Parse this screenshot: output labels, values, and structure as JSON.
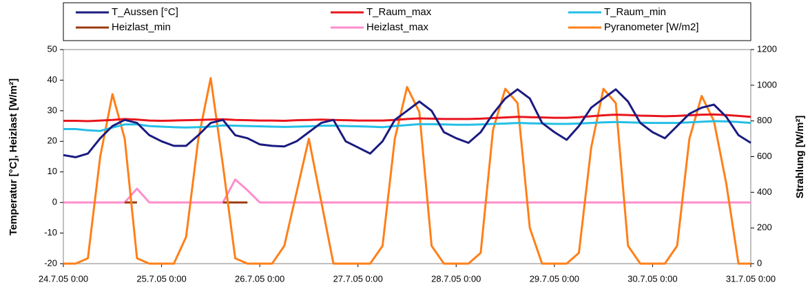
{
  "chart_data": {
    "type": "line",
    "y_label": "Temperatur [°C], Heizlast [W/m²]",
    "y2_label": "Strahlung [W/m²]",
    "xlim": [
      0,
      7
    ],
    "xticks": [
      {
        "value": 0,
        "label": "24.7.05  0:00"
      },
      {
        "value": 1,
        "label": "25.7.05  0:00"
      },
      {
        "value": 2,
        "label": "26.7.05  0:00"
      },
      {
        "value": 3,
        "label": "27.7.05  0:00"
      },
      {
        "value": 4,
        "label": "28.7.05  0:00"
      },
      {
        "value": 5,
        "label": "29.7.05  0:00"
      },
      {
        "value": 6,
        "label": "30.7.05  0:00"
      },
      {
        "value": 7,
        "label": "31.7.05  0:00"
      }
    ],
    "ylim": [
      -20,
      50
    ],
    "yticks": [
      -20,
      -10,
      0,
      10,
      20,
      30,
      40,
      50
    ],
    "y2lim": [
      0,
      1200
    ],
    "y2ticks": [
      0,
      200,
      400,
      600,
      800,
      1000,
      1200
    ],
    "x": [
      0,
      0.125,
      0.25,
      0.375,
      0.5,
      0.625,
      0.75,
      0.875,
      1,
      1.125,
      1.25,
      1.375,
      1.5,
      1.625,
      1.75,
      1.875,
      2,
      2.125,
      2.25,
      2.375,
      2.5,
      2.625,
      2.75,
      2.875,
      3,
      3.125,
      3.25,
      3.375,
      3.5,
      3.625,
      3.75,
      3.875,
      4,
      4.125,
      4.25,
      4.375,
      4.5,
      4.625,
      4.75,
      4.875,
      5,
      5.125,
      5.25,
      5.375,
      5.5,
      5.625,
      5.75,
      5.875,
      6,
      6.125,
      6.25,
      6.375,
      6.5,
      6.625,
      6.75,
      6.875,
      7
    ],
    "series": [
      {
        "name": "T_Aussen [°C]",
        "color": "#1a1a80",
        "values": [
          15.5,
          14.8,
          16,
          21,
          25,
          27,
          26,
          22,
          20,
          18.5,
          18.5,
          22,
          26,
          27,
          22,
          21,
          19,
          18.5,
          18.3,
          20,
          23,
          26,
          27,
          20,
          18,
          16,
          20,
          27,
          30,
          33,
          30,
          23,
          21,
          19.5,
          23,
          29,
          34,
          37,
          34,
          26,
          23,
          20.5,
          25,
          31,
          34,
          37,
          33,
          26,
          23,
          21,
          25,
          29,
          31,
          32,
          28,
          22,
          19.5
        ]
      },
      {
        "name": "T_Raum_max",
        "color": "#e8141c",
        "values": [
          26.7,
          26.7,
          26.6,
          26.8,
          27,
          27.3,
          27.1,
          26.8,
          26.7,
          26.8,
          26.9,
          27,
          27.1,
          27.2,
          27,
          26.9,
          26.8,
          26.8,
          26.7,
          26.9,
          27,
          27.1,
          27,
          26.9,
          26.8,
          26.8,
          26.8,
          27,
          27.3,
          27.5,
          27.4,
          27.3,
          27.3,
          27.3,
          27.4,
          27.6,
          27.8,
          28,
          27.9,
          27.8,
          27.7,
          27.7,
          27.9,
          28.2,
          28.5,
          28.7,
          28.6,
          28.4,
          28.3,
          28.2,
          28.3,
          28.5,
          28.7,
          28.8,
          28.6,
          28.3,
          28
        ]
      },
      {
        "name": "T_Raum_min",
        "color": "#22bfe6",
        "values": [
          24,
          24,
          23.6,
          23.4,
          24.5,
          25.5,
          25.5,
          25,
          24.8,
          24.6,
          24.5,
          24.6,
          24.8,
          25.2,
          25.1,
          25,
          24.9,
          24.8,
          24.7,
          24.8,
          24.9,
          25.1,
          25.1,
          25,
          24.9,
          24.8,
          24.6,
          25,
          25.3,
          25.6,
          25.6,
          25.5,
          25.4,
          25.4,
          25.5,
          25.7,
          25.8,
          26,
          25.9,
          25.8,
          25.7,
          25.7,
          25.8,
          26,
          26.2,
          26.3,
          26.2,
          26.1,
          26,
          26,
          26,
          26.2,
          26.4,
          26.6,
          26.5,
          26.3,
          26
        ]
      },
      {
        "name": "Heizlast_min",
        "color": "#9b3a10",
        "values": [
          null,
          null,
          null,
          null,
          null,
          0,
          0,
          null,
          null,
          null,
          null,
          null,
          null,
          0,
          0,
          0,
          null,
          null,
          null,
          null,
          null,
          null,
          null,
          null,
          null,
          null,
          null,
          null,
          null,
          null,
          null,
          null,
          null,
          null,
          null,
          null,
          null,
          null,
          null,
          null,
          null,
          null,
          null,
          null,
          null,
          null,
          null,
          null,
          null,
          null,
          null,
          null,
          null,
          null,
          null,
          null,
          null
        ]
      },
      {
        "name": "Heizlast_max",
        "color": "#ff8ccc",
        "values": [
          0,
          0,
          0,
          0,
          0,
          0,
          4.5,
          0,
          0,
          0,
          0,
          0,
          0,
          0,
          7.5,
          4,
          0,
          0,
          0,
          0,
          0,
          0,
          0,
          0,
          0,
          0,
          0,
          0,
          0,
          0,
          0,
          0,
          0,
          0,
          0,
          0,
          0,
          0,
          0,
          0,
          0,
          0,
          0,
          0,
          0,
          0,
          0,
          0,
          0,
          0,
          0,
          0,
          0,
          0,
          0,
          0,
          0
        ]
      },
      {
        "name": "Pyranometer [W/m2]",
        "color": "#ff7f17",
        "axis": "y2",
        "values": [
          0,
          0,
          30,
          600,
          950,
          700,
          30,
          0,
          0,
          0,
          150,
          700,
          1040,
          550,
          30,
          0,
          0,
          0,
          100,
          400,
          700,
          350,
          0,
          0,
          0,
          0,
          100,
          700,
          990,
          850,
          100,
          0,
          0,
          0,
          60,
          750,
          980,
          900,
          200,
          0,
          0,
          0,
          60,
          650,
          980,
          900,
          100,
          0,
          0,
          0,
          100,
          700,
          940,
          800,
          450,
          0,
          0
        ]
      }
    ]
  }
}
